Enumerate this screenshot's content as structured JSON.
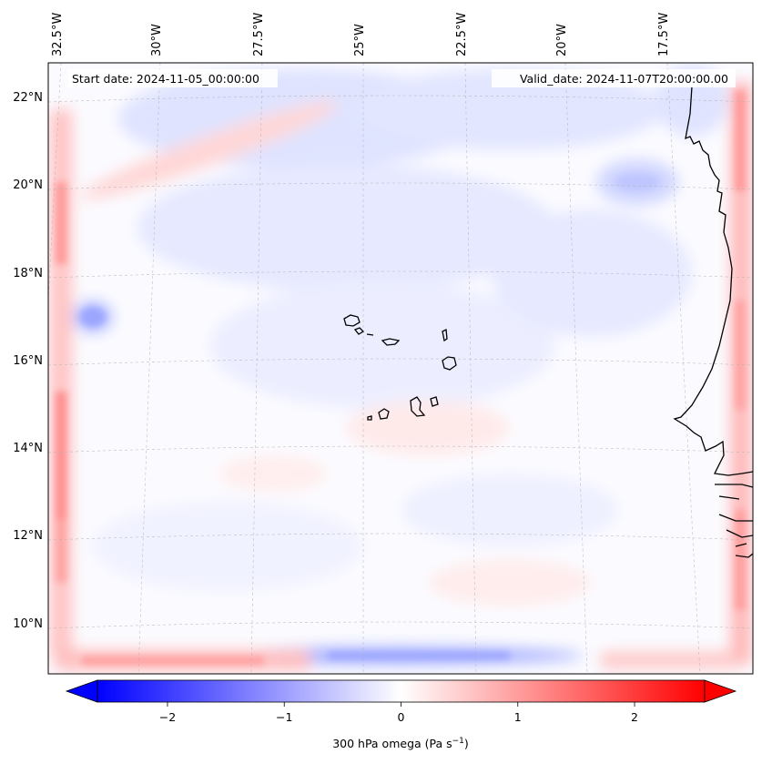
{
  "header": {
    "start_date": "Start date: 2024-11-05_00:00:00",
    "valid_date": "Valid_date: 2024-11-07T20:00:00.00"
  },
  "map": {
    "variable": "300 hPa omega",
    "longitude_labels": [
      "32.5°W",
      "30°W",
      "27.5°W",
      "25°W",
      "22.5°W",
      "20°W",
      "17.5°W"
    ],
    "latitude_labels": [
      "22°N",
      "20°N",
      "18°N",
      "16°N",
      "14°N",
      "12°N",
      "10°N"
    ],
    "extent": {
      "lon_min_W": 33.0,
      "lon_max_W": 15.6,
      "lat_min_N": 8.9,
      "lat_max_N": 22.8
    },
    "gridlines": true,
    "colormap": "bwr",
    "colors": {
      "negative": "#0000ff",
      "zero": "#ffffff",
      "positive": "#ff0000",
      "coastline": "#000000"
    }
  },
  "colorbar": {
    "label_main": "300 hPa omega (Pa s",
    "label_exp": "−1",
    "label_close": ")",
    "vmin": -2.6,
    "vmax": 2.6,
    "ticks": [
      {
        "value": -2,
        "label": "−2"
      },
      {
        "value": -1,
        "label": "−1"
      },
      {
        "value": 0,
        "label": "0"
      },
      {
        "value": 1,
        "label": "1"
      },
      {
        "value": 2,
        "label": "2"
      }
    ],
    "extend": "both"
  }
}
